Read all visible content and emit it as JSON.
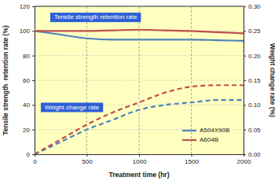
{
  "chart_data": {
    "type": "line",
    "x_label": "Treatment time (hr)",
    "y_label": "Tensile strength  retention rate (%)",
    "y2_label": "Weight change rate (%)",
    "annotations": [
      "Tensile strength retention rate",
      "Weight change rate"
    ],
    "x": [
      0,
      250,
      500,
      750,
      1000,
      1250,
      1500,
      1750,
      2000
    ],
    "series": [
      {
        "name": "A504X90B",
        "color": "#4f81bd",
        "line_style": "solid",
        "values": [
          100,
          97,
          94,
          93,
          93,
          93,
          93,
          92.5,
          92
        ]
      },
      {
        "name": "A604B",
        "color": "#c0504d",
        "line_style": "solid",
        "values": [
          100,
          100,
          100,
          100.5,
          101,
          100.5,
          100,
          99,
          98
        ]
      },
      {
        "name": "A504X90B",
        "color": "#4f81bd",
        "line_style": "dashed",
        "axis": "y2",
        "values": [
          0,
          0.025,
          0.05,
          0.07,
          0.09,
          0.1,
          0.105,
          0.11,
          0.11
        ]
      },
      {
        "name": "A604B",
        "color": "#c0504d",
        "line_style": "dashed",
        "axis": "y2",
        "values": [
          0,
          0.03,
          0.06,
          0.085,
          0.105,
          0.125,
          0.137,
          0.14,
          0.14
        ]
      }
    ],
    "xlim": [
      0,
      2000
    ],
    "xticks": [
      0,
      500,
      1000,
      1500,
      2000
    ],
    "ylim": [
      0,
      120
    ],
    "yticks": [
      0,
      20,
      40,
      60,
      80,
      100,
      120
    ],
    "y2lim": [
      0,
      0.3
    ],
    "y2ticks": [
      {
        "value": 0,
        "label": "0.00"
      },
      {
        "value": 0.05,
        "label": "0.05"
      },
      {
        "value": 0.1,
        "label": "0.10"
      },
      {
        "value": 0.15,
        "label": "0.15"
      },
      {
        "value": 0.2,
        "label": "0.20"
      },
      {
        "value": 0.25,
        "label": "0.25"
      },
      {
        "value": 0.3,
        "label": "0.30"
      }
    ],
    "grid": true,
    "legend": "lower right"
  }
}
